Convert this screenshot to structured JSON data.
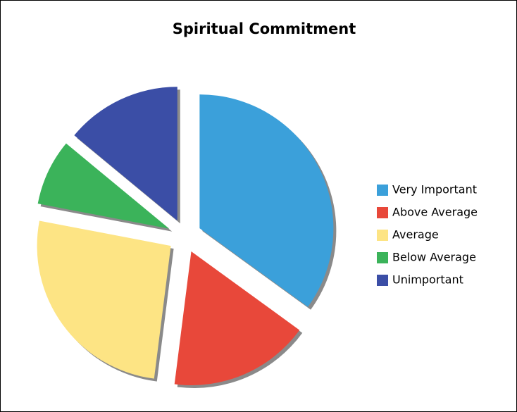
{
  "chart_data": {
    "type": "pie",
    "title": "Spiritual Commitment",
    "categories": [
      "Very Important",
      "Above Average",
      "Average",
      "Below Average",
      "Unimportant"
    ],
    "values": [
      35,
      17,
      26,
      8,
      14
    ],
    "colors": [
      "#3ba0da",
      "#e8483a",
      "#fde484",
      "#3bb35a",
      "#3b4ea6"
    ],
    "legend": "right"
  }
}
